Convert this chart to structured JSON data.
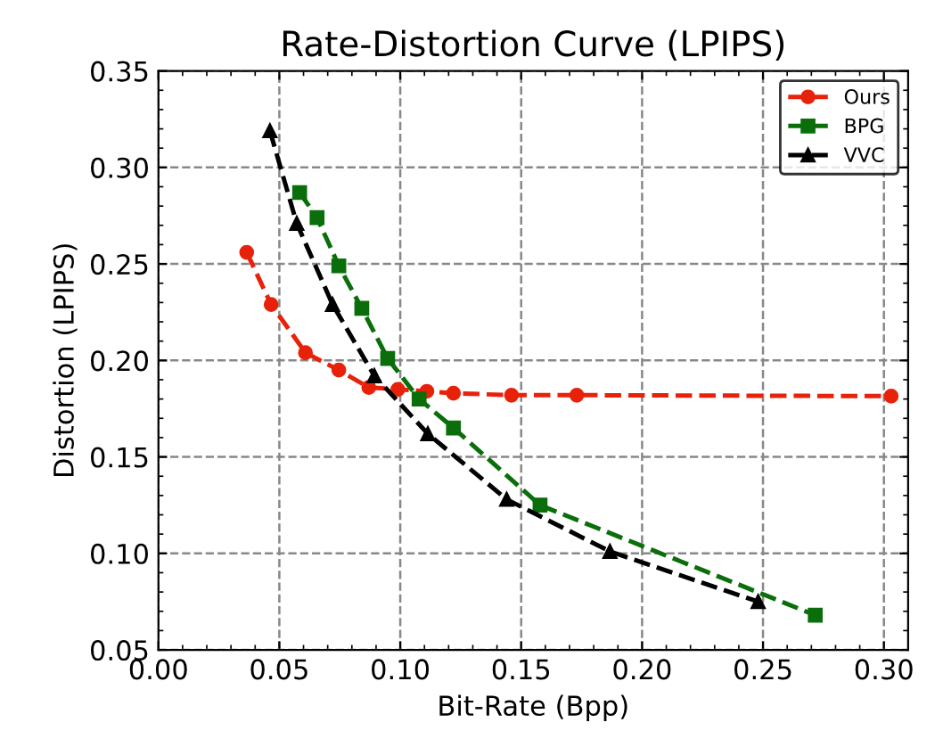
{
  "chart_data": {
    "type": "line",
    "title": "Rate-Distortion Curve (LPIPS)",
    "xlabel": "Bit-Rate (Bpp)",
    "ylabel": "Distortion (LPIPS)",
    "xlim": [
      0,
      0.31
    ],
    "ylim": [
      0.05,
      0.35
    ],
    "xticks": [
      {
        "value": 0,
        "label": "0.00"
      },
      {
        "value": 0.05,
        "label": "0.05"
      },
      {
        "value": 0.1,
        "label": "0.10"
      },
      {
        "value": 0.15,
        "label": "0.15"
      },
      {
        "value": 0.2,
        "label": "0.20"
      },
      {
        "value": 0.25,
        "label": "0.25"
      },
      {
        "value": 0.3,
        "label": "0.30"
      }
    ],
    "yticks": [
      0.05,
      {
        "value": 0.1,
        "label": "0.10"
      },
      0.15,
      {
        "value": 0.2,
        "label": "0.20"
      },
      0.25,
      {
        "value": 0.3,
        "label": "0.30"
      },
      0.35
    ],
    "grid": true,
    "legend": "top right",
    "line_style": "dashed",
    "series": [
      {
        "name": "Ours",
        "color": "#e8220a",
        "marker": "circle",
        "x": [
          0.0365,
          0.0466,
          0.0608,
          0.0746,
          0.087,
          0.099,
          0.111,
          0.122,
          0.146,
          0.173,
          0.303
        ],
        "values": [
          0.256,
          0.229,
          0.204,
          0.195,
          0.186,
          0.185,
          0.184,
          0.183,
          0.182,
          0.182,
          0.1815
        ]
      },
      {
        "name": "BPG",
        "color": "#0a6e0a",
        "marker": "square",
        "x": [
          0.0584,
          0.0656,
          0.0746,
          0.0841,
          0.0948,
          0.1078,
          0.122,
          0.1578,
          0.2716
        ],
        "values": [
          0.287,
          0.274,
          0.249,
          0.227,
          0.201,
          0.18,
          0.165,
          0.125,
          0.068
        ]
      },
      {
        "name": "VVC",
        "color": "#000000",
        "marker": "triangle",
        "x": [
          0.0461,
          0.0572,
          0.072,
          0.0893,
          0.1114,
          0.144,
          0.1867,
          0.248
        ],
        "values": [
          0.319,
          0.271,
          0.229,
          0.192,
          0.162,
          0.128,
          0.101,
          0.075
        ]
      }
    ]
  }
}
